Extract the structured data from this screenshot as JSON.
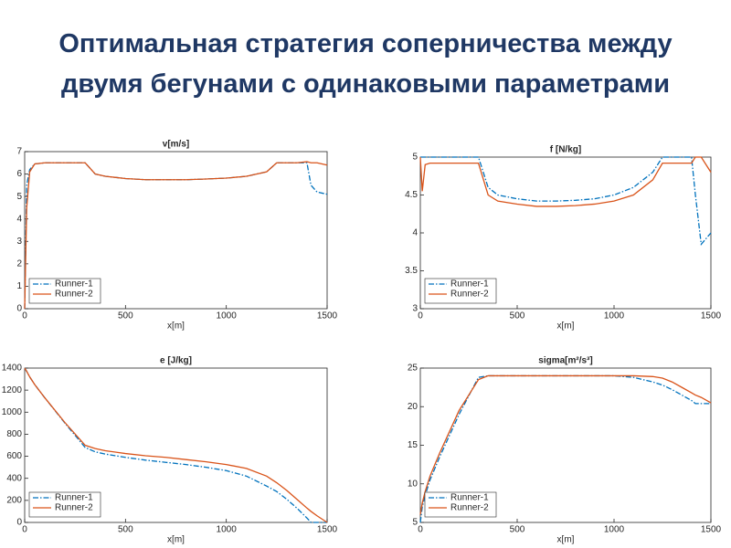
{
  "slide_title": [
    "Оптимальная стратегия соперничества между",
    "двумя бегунами с одинаковыми параметрами"
  ],
  "chart_data": [
    {
      "type": "line",
      "title": "v[m/s]",
      "xlabel": "x[m]",
      "x": [
        0,
        10,
        25,
        50,
        100,
        200,
        300,
        350,
        400,
        500,
        600,
        700,
        800,
        900,
        1000,
        1100,
        1200,
        1250,
        1300,
        1350,
        1400,
        1420,
        1450,
        1500
      ],
      "series": [
        {
          "name": "Runner-1",
          "color": "#0072bd",
          "dash": "dashdot",
          "values": [
            0,
            5.5,
            6.2,
            6.45,
            6.5,
            6.5,
            6.5,
            6.0,
            5.9,
            5.8,
            5.75,
            5.75,
            5.75,
            5.78,
            5.82,
            5.9,
            6.1,
            6.5,
            6.5,
            6.5,
            6.5,
            5.5,
            5.2,
            5.1
          ]
        },
        {
          "name": "Runner-2",
          "color": "#d95319",
          "dash": "solid",
          "values": [
            0,
            4.5,
            6.1,
            6.45,
            6.5,
            6.5,
            6.5,
            6.0,
            5.9,
            5.8,
            5.75,
            5.75,
            5.75,
            5.78,
            5.82,
            5.9,
            6.1,
            6.5,
            6.5,
            6.5,
            6.55,
            6.5,
            6.5,
            6.4
          ]
        }
      ],
      "xlim": [
        0,
        1500
      ],
      "xticks": [
        0,
        500,
        1000,
        1500
      ],
      "ylim": [
        0,
        7
      ],
      "yticks": [
        0,
        1,
        2,
        3,
        4,
        5,
        6,
        7
      ],
      "legend": "lower left"
    },
    {
      "type": "line",
      "title": "f [N/kg]",
      "xlabel": "x[m]",
      "x": [
        0,
        10,
        25,
        50,
        100,
        200,
        300,
        350,
        400,
        500,
        600,
        700,
        800,
        900,
        1000,
        1100,
        1200,
        1250,
        1300,
        1350,
        1400,
        1420,
        1450,
        1500
      ],
      "series": [
        {
          "name": "Runner-1",
          "color": "#0072bd",
          "dash": "dashdot",
          "values": [
            5,
            5,
            5,
            5,
            5,
            5,
            5,
            4.6,
            4.5,
            4.45,
            4.42,
            4.42,
            4.43,
            4.45,
            4.5,
            4.6,
            4.8,
            5,
            5,
            5,
            5,
            4.5,
            3.85,
            4.0
          ]
        },
        {
          "name": "Runner-2",
          "color": "#d95319",
          "dash": "solid",
          "values": [
            5,
            4.55,
            4.9,
            4.92,
            4.92,
            4.92,
            4.92,
            4.5,
            4.42,
            4.38,
            4.35,
            4.35,
            4.36,
            4.38,
            4.42,
            4.5,
            4.7,
            4.92,
            4.92,
            4.92,
            4.92,
            5,
            5,
            4.8
          ]
        }
      ],
      "xlim": [
        0,
        1500
      ],
      "xticks": [
        0,
        500,
        1000,
        1500
      ],
      "ylim": [
        3,
        5
      ],
      "yticks": [
        3,
        3.5,
        4,
        4.5,
        5
      ],
      "legend": "lower left"
    },
    {
      "type": "line",
      "title": "e [J/kg]",
      "xlabel": "x[m]",
      "x": [
        0,
        10,
        25,
        50,
        100,
        200,
        300,
        350,
        400,
        500,
        600,
        700,
        800,
        900,
        1000,
        1100,
        1200,
        1250,
        1300,
        1350,
        1400,
        1420,
        1450,
        1500
      ],
      "series": [
        {
          "name": "Runner-1",
          "color": "#0072bd",
          "dash": "dashdot",
          "values": [
            1400,
            1370,
            1320,
            1250,
            1130,
            900,
            680,
            640,
            620,
            590,
            565,
            545,
            525,
            500,
            470,
            420,
            330,
            280,
            210,
            130,
            40,
            0,
            0,
            0
          ]
        },
        {
          "name": "Runner-2",
          "color": "#d95319",
          "dash": "solid",
          "values": [
            1400,
            1370,
            1320,
            1250,
            1130,
            905,
            700,
            670,
            650,
            625,
            605,
            590,
            570,
            550,
            525,
            490,
            420,
            360,
            290,
            210,
            130,
            100,
            60,
            0
          ]
        }
      ],
      "xlim": [
        0,
        1500
      ],
      "xticks": [
        0,
        500,
        1000,
        1500
      ],
      "ylim": [
        0,
        1400
      ],
      "yticks": [
        0,
        200,
        400,
        600,
        800,
        1000,
        1200,
        1400
      ],
      "legend": "lower left"
    },
    {
      "type": "line",
      "title": "sigma[m²/s³]",
      "xlabel": "x[m]",
      "x": [
        0,
        10,
        25,
        50,
        100,
        200,
        300,
        350,
        400,
        500,
        600,
        700,
        800,
        900,
        1000,
        1100,
        1200,
        1250,
        1300,
        1350,
        1400,
        1420,
        1450,
        1500
      ],
      "series": [
        {
          "name": "Runner-1",
          "color": "#0072bd",
          "dash": "dashdot",
          "values": [
            5,
            7,
            8.5,
            10.5,
            13.5,
            19,
            23.8,
            24,
            24,
            24,
            24,
            24,
            24,
            24,
            24,
            23.8,
            23.2,
            22.8,
            22.2,
            21.5,
            20.8,
            20.4,
            20.4,
            20.4
          ]
        },
        {
          "name": "Runner-2",
          "color": "#d95319",
          "dash": "solid",
          "values": [
            6,
            7.5,
            9,
            11,
            14,
            19.5,
            23.5,
            24,
            24,
            24,
            24,
            24,
            24,
            24,
            24,
            24,
            23.9,
            23.7,
            23.2,
            22.5,
            21.8,
            21.5,
            21.2,
            20.5
          ]
        }
      ],
      "xlim": [
        0,
        1500
      ],
      "xticks": [
        0,
        500,
        1000,
        1500
      ],
      "ylim": [
        5,
        25
      ],
      "yticks": [
        5,
        10,
        15,
        20,
        25
      ],
      "legend": "lower left"
    }
  ]
}
